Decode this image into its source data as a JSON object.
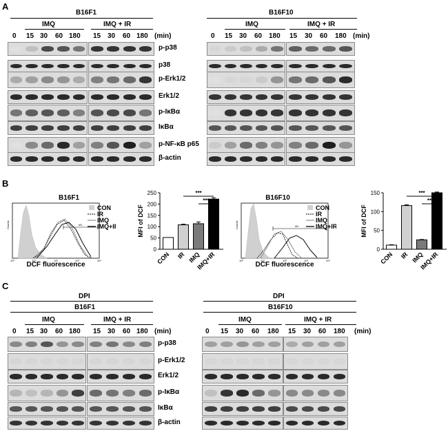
{
  "panel_a": {
    "letter": "A",
    "cell_lines": [
      "B16F1",
      "B16F10"
    ],
    "groups": [
      "IMQ",
      "IMQ + IR"
    ],
    "times_imq": [
      "0",
      "15",
      "30",
      "60",
      "180"
    ],
    "times_imq_ir": [
      "15",
      "30",
      "60",
      "180"
    ],
    "unit": "(min)",
    "proteins": [
      "p-p38",
      "p38",
      "p-Erk1/2",
      "Erk1/2",
      "p-IκBα",
      "IκBα",
      "p-NF-κB p65",
      "β-actin"
    ]
  },
  "panel_b": {
    "letter": "B",
    "histograms": [
      {
        "title": "B16F1",
        "xlabel": "DCF fluorescence",
        "ylabel": "Counts",
        "legend": [
          "CON",
          "IR",
          "IMQ",
          "IMQ+IR"
        ],
        "gate_label": "M1",
        "xticks": [
          "10⁰",
          "10¹",
          "10²",
          "10³",
          "10⁴"
        ]
      },
      {
        "title": "B16F10",
        "xlabel": "DCF fluorescence",
        "ylabel": "Counts",
        "legend": [
          "CON",
          "IR",
          "IMQ",
          "IMQ+IR"
        ],
        "gate_label": "M1",
        "xticks": [
          "10⁰",
          "10¹",
          "10²",
          "10³",
          "10⁴"
        ]
      }
    ]
  },
  "chart_data": [
    {
      "type": "bar",
      "categories": [
        "CON",
        "IR",
        "IMQ",
        "IMQ+IR"
      ],
      "values": [
        52,
        108,
        113,
        222
      ],
      "errors": [
        0,
        3,
        8,
        6
      ],
      "ylabel": "MFI of DCF",
      "ylim": [
        0,
        250
      ],
      "yticks": [
        "0",
        "50",
        "100",
        "150",
        "200",
        "250"
      ],
      "significance": [
        "***",
        "***"
      ],
      "colors": [
        "#ffffff",
        "#d0d0d0",
        "#7a7a7a",
        "#000000"
      ]
    },
    {
      "type": "bar",
      "categories": [
        "CON",
        "IR",
        "IMQ",
        "IMQ+IR"
      ],
      "values": [
        11,
        116,
        25,
        150
      ],
      "errors": [
        1,
        2,
        1,
        2
      ],
      "ylabel": "MFI of DCF",
      "ylim": [
        0,
        150
      ],
      "yticks": [
        "0",
        "50",
        "100",
        "150"
      ],
      "significance": [
        "***",
        "**"
      ],
      "colors": [
        "#ffffff",
        "#d0d0d0",
        "#7a7a7a",
        "#000000"
      ]
    }
  ],
  "panel_c": {
    "letter": "C",
    "treatment": "DPI",
    "cell_lines": [
      "B16F1",
      "B16F10"
    ],
    "groups": [
      "IMQ",
      "IMQ + IR"
    ],
    "times_imq": [
      "0",
      "15",
      "30",
      "60",
      "180"
    ],
    "times_imq_ir": [
      "15",
      "30",
      "60",
      "180"
    ],
    "unit": "(min)",
    "proteins": [
      "p-p38",
      "p-Erk1/2",
      "Erk1/2",
      "p-IκBα",
      "IκBα",
      "β-actin"
    ]
  },
  "band_levels": {
    "a_left": [
      [
        0.05,
        0.2,
        0.75,
        0.7,
        0.55,
        0.85,
        0.85,
        0.85,
        0.85
      ],
      [
        0.9,
        0.9,
        0.9,
        0.9,
        0.9,
        0.9,
        0.9,
        0.9,
        0.9
      ],
      [
        0.3,
        0.35,
        0.45,
        0.4,
        0.3,
        0.5,
        0.55,
        0.6,
        0.85
      ],
      [
        0.9,
        0.9,
        0.9,
        0.9,
        0.9,
        0.9,
        0.9,
        0.9,
        0.9
      ],
      [
        0.55,
        0.65,
        0.7,
        0.65,
        0.5,
        0.7,
        0.75,
        0.75,
        0.55
      ],
      [
        0.8,
        0.8,
        0.8,
        0.8,
        0.8,
        0.8,
        0.8,
        0.8,
        0.8
      ],
      [
        0.05,
        0.45,
        0.6,
        0.9,
        0.35,
        0.5,
        0.7,
        0.95,
        0.35
      ],
      [
        0.9,
        0.9,
        0.9,
        0.9,
        0.9,
        0.9,
        0.9,
        0.9,
        0.9
      ]
    ],
    "a_right": [
      [
        0.1,
        0.15,
        0.2,
        0.3,
        0.55,
        0.65,
        0.6,
        0.6,
        0.7
      ],
      [
        0.9,
        0.9,
        0.9,
        0.9,
        0.9,
        0.9,
        0.9,
        0.9,
        0.9
      ],
      [
        0.05,
        0.1,
        0.1,
        0.15,
        0.4,
        0.55,
        0.6,
        0.7,
        0.9
      ],
      [
        0.85,
        0.85,
        0.85,
        0.85,
        0.85,
        0.85,
        0.85,
        0.85,
        0.85
      ],
      [
        0.05,
        0.85,
        0.85,
        0.85,
        0.85,
        0.85,
        0.85,
        0.85,
        0.85
      ],
      [
        0.7,
        0.7,
        0.7,
        0.7,
        0.7,
        0.7,
        0.7,
        0.7,
        0.7
      ],
      [
        0.15,
        0.35,
        0.6,
        0.5,
        0.4,
        0.5,
        0.6,
        0.95,
        0.4
      ],
      [
        0.9,
        0.9,
        0.9,
        0.9,
        0.9,
        0.9,
        0.9,
        0.9,
        0.9
      ]
    ],
    "c_left": [
      [
        0.45,
        0.5,
        0.7,
        0.4,
        0.45,
        0.5,
        0.55,
        0.45,
        0.5
      ],
      [
        0.1,
        0.1,
        0.1,
        0.1,
        0.1,
        0.1,
        0.1,
        0.1,
        0.1
      ],
      [
        0.9,
        0.9,
        0.9,
        0.9,
        0.9,
        0.9,
        0.9,
        0.9,
        0.9
      ],
      [
        0.25,
        0.2,
        0.25,
        0.4,
        0.8,
        0.6,
        0.55,
        0.5,
        0.6
      ],
      [
        0.7,
        0.7,
        0.7,
        0.7,
        0.7,
        0.7,
        0.7,
        0.7,
        0.7
      ],
      [
        0.85,
        0.85,
        0.85,
        0.85,
        0.85,
        0.85,
        0.85,
        0.85,
        0.85
      ]
    ],
    "c_right": [
      [
        0.35,
        0.35,
        0.4,
        0.35,
        0.35,
        0.3,
        0.35,
        0.35,
        0.35
      ],
      [
        0.1,
        0.1,
        0.1,
        0.1,
        0.1,
        0.1,
        0.1,
        0.1,
        0.1
      ],
      [
        0.9,
        0.9,
        0.9,
        0.9,
        0.9,
        0.9,
        0.9,
        0.9,
        0.9
      ],
      [
        0.2,
        0.85,
        0.9,
        0.6,
        0.4,
        0.45,
        0.45,
        0.45,
        0.45
      ],
      [
        0.8,
        0.8,
        0.8,
        0.8,
        0.8,
        0.75,
        0.75,
        0.75,
        0.75
      ],
      [
        0.9,
        0.9,
        0.9,
        0.9,
        0.9,
        0.9,
        0.9,
        0.9,
        0.9
      ]
    ]
  }
}
